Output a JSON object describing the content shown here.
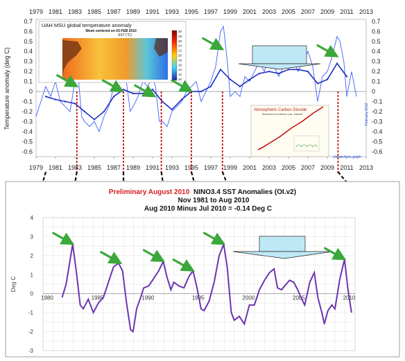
{
  "colors": {
    "top_series": "#3f5fff",
    "top_mean": "#1f2fc0",
    "bottom_series": "#6a34b0",
    "arrow": "#3aa83a",
    "connector_red": "#c21010",
    "connector_black": "#111111",
    "box_fill": "#bfe8f6"
  },
  "chart_data": [
    {
      "type": "line",
      "title": "UAH MSU global temperature anomaly",
      "ylabel": "Temperature anomaly (deg C)",
      "side_note": "February 2012",
      "footer_note": "climate4you.graph",
      "x_ticks": [
        1979,
        1981,
        1983,
        1985,
        1987,
        1989,
        1991,
        1993,
        1995,
        1997,
        1999,
        2001,
        2003,
        2005,
        2007,
        2009,
        2011,
        2013
      ],
      "y_ticks": [
        0.7,
        0.6,
        0.5,
        0.4,
        0.3,
        0.2,
        0.1,
        0,
        -0.1,
        -0.2,
        -0.3,
        -0.4,
        -0.5,
        -0.6
      ],
      "xlim": [
        1979,
        2013
      ],
      "ylim": [
        -0.65,
        0.72
      ],
      "series": [
        {
          "kind": "monthly",
          "x": [
            1979.0,
            1979.5,
            1980.0,
            1980.5,
            1981.0,
            1981.5,
            1982.0,
            1982.5,
            1983.0,
            1983.3,
            1983.7,
            1984.0,
            1984.5,
            1985.0,
            1985.5,
            1986.0,
            1986.5,
            1987.0,
            1987.5,
            1988.0,
            1988.3,
            1988.7,
            1989.0,
            1989.5,
            1990.0,
            1990.5,
            1991.0,
            1991.3,
            1991.7,
            1992.0,
            1992.5,
            1993.0,
            1993.5,
            1994.0,
            1994.5,
            1995.0,
            1995.5,
            1996.0,
            1996.5,
            1997.0,
            1997.5,
            1998.0,
            1998.3,
            1998.7,
            1999.0,
            1999.5,
            2000.0,
            2000.5,
            2001.0,
            2001.5,
            2002.0,
            2002.5,
            2003.0,
            2003.5,
            2004.0,
            2004.5,
            2005.0,
            2005.5,
            2006.0,
            2006.5,
            2007.0,
            2007.5,
            2008.0,
            2008.5,
            2009.0,
            2009.5,
            2010.0,
            2010.3,
            2010.7,
            2011.0,
            2011.5,
            2012.0
          ],
          "y": [
            -0.25,
            -0.1,
            0.05,
            -0.05,
            0.1,
            -0.1,
            -0.15,
            -0.2,
            0.1,
            0.2,
            -0.25,
            -0.3,
            -0.35,
            -0.3,
            -0.4,
            -0.25,
            -0.15,
            0.05,
            0.25,
            0.2,
            0.1,
            -0.2,
            -0.15,
            -0.05,
            0.1,
            0.05,
            0.15,
            0.05,
            -0.3,
            -0.3,
            -0.35,
            -0.2,
            -0.15,
            -0.1,
            0.0,
            0.05,
            0.1,
            -0.1,
            0.0,
            0.1,
            0.25,
            0.6,
            0.65,
            0.3,
            -0.05,
            0.0,
            -0.05,
            0.15,
            0.1,
            0.2,
            0.3,
            0.2,
            0.35,
            0.25,
            0.15,
            0.25,
            0.35,
            0.3,
            0.2,
            0.3,
            0.4,
            0.25,
            -0.1,
            0.15,
            0.2,
            0.35,
            0.55,
            0.5,
            0.3,
            -0.05,
            0.2,
            -0.05
          ]
        },
        {
          "kind": "running-mean",
          "x": [
            1980,
            1981,
            1982,
            1983,
            1984,
            1985,
            1986,
            1987,
            1988,
            1989,
            1990,
            1991,
            1992,
            1993,
            1994,
            1995,
            1996,
            1997,
            1998,
            1999,
            2000,
            2001,
            2002,
            2003,
            2004,
            2005,
            2006,
            2007,
            2008,
            2009,
            2010,
            2011
          ],
          "y": [
            -0.05,
            -0.08,
            -0.1,
            -0.12,
            -0.2,
            -0.28,
            -0.2,
            -0.05,
            0.02,
            -0.02,
            -0.02,
            0.02,
            -0.1,
            -0.18,
            -0.08,
            0.0,
            0.0,
            0.05,
            0.22,
            0.12,
            0.05,
            0.12,
            0.18,
            0.2,
            0.18,
            0.22,
            0.22,
            0.2,
            0.08,
            0.12,
            0.28,
            0.15
          ]
        }
      ],
      "inset_sst": {
        "title": "Week centered on 03 FEB 2010",
        "unit": "SST (°C)",
        "scale": [
          "30",
          "28",
          "26",
          "24",
          "22",
          "20",
          "18",
          "16",
          "14",
          "12",
          "10"
        ]
      },
      "inset_co2": {
        "title": "Atmospheric Carbon Dioxide",
        "subtitle": "Measured at Mauna Loa, Hawaii"
      }
    },
    {
      "type": "line",
      "title_red": "Preliminary August 2010",
      "title_rest": "NINO3.4 SST Anomalies  (OI.v2)",
      "subtitle_1": "Nov 1981 to Aug 2010",
      "subtitle_2": "Aug 2010 Minus Jul 2010 = -0.14 Deg C",
      "ylabel": "Deg C",
      "x_ticks": [
        1980,
        1985,
        1990,
        1995,
        2000,
        2005,
        2010
      ],
      "y_ticks": [
        4,
        3,
        2,
        1,
        0,
        -1,
        -2,
        -3
      ],
      "xlim": [
        1980,
        2011
      ],
      "ylim": [
        -3,
        4
      ],
      "series": [
        {
          "x": [
            1981.9,
            1982.3,
            1982.7,
            1982.95,
            1983.3,
            1983.7,
            1984.0,
            1984.5,
            1985.0,
            1985.5,
            1986.0,
            1986.5,
            1987.0,
            1987.5,
            1987.9,
            1988.3,
            1988.7,
            1988.95,
            1989.3,
            1989.7,
            1990.0,
            1990.5,
            1991.0,
            1991.5,
            1991.95,
            1992.3,
            1992.7,
            1993.0,
            1993.5,
            1994.0,
            1994.5,
            1994.9,
            1995.3,
            1995.7,
            1996.0,
            1996.5,
            1997.0,
            1997.5,
            1997.95,
            1998.3,
            1998.7,
            1999.0,
            1999.5,
            2000.0,
            2000.5,
            2001.0,
            2001.5,
            2002.0,
            2002.5,
            2002.95,
            2003.3,
            2003.7,
            2004.0,
            2004.5,
            2004.9,
            2005.3,
            2005.7,
            2006.0,
            2006.5,
            2006.95,
            2007.3,
            2007.7,
            2007.95,
            2008.3,
            2008.7,
            2009.0,
            2009.5,
            2009.95,
            2010.3,
            2010.65
          ],
          "y": [
            -0.2,
            0.5,
            1.8,
            2.6,
            1.2,
            -0.6,
            -0.8,
            -0.3,
            -1.0,
            -0.5,
            -0.2,
            0.6,
            1.4,
            1.6,
            1.2,
            -0.5,
            -1.9,
            -2.0,
            -0.8,
            -0.2,
            0.3,
            0.4,
            0.8,
            1.2,
            1.7,
            0.9,
            0.2,
            0.6,
            0.4,
            0.3,
            0.9,
            1.2,
            0.3,
            -0.8,
            -0.9,
            -0.4,
            0.6,
            2.0,
            2.6,
            1.4,
            -1.0,
            -1.4,
            -1.2,
            -1.6,
            -0.6,
            -0.6,
            0.2,
            0.7,
            1.1,
            1.3,
            0.3,
            0.2,
            0.4,
            0.7,
            0.6,
            0.2,
            -0.3,
            -0.6,
            0.6,
            1.1,
            -0.2,
            -1.0,
            -1.6,
            -0.9,
            -0.6,
            -0.8,
            0.8,
            1.8,
            0.2,
            -1.0
          ]
        }
      ]
    }
  ]
}
